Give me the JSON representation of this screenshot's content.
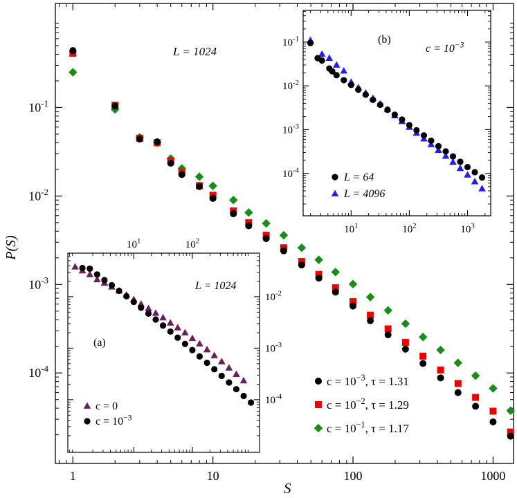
{
  "colors": {
    "black": "#000000",
    "red": "#ee0000",
    "green": "#1a8c1a",
    "blue": "#1f1fee",
    "purple": "#6b1f5a"
  },
  "chart_data": [
    {
      "id": "main",
      "type": "scatter",
      "xscale": "log",
      "yscale": "log",
      "xlim": [
        0.75,
        1400
      ],
      "ylim": [
        9.5e-06,
        1.5
      ],
      "xlabel": "S",
      "ylabel": "P(S)",
      "xticks": [
        {
          "v": 1,
          "label": "1"
        },
        {
          "v": 10,
          "label": "10"
        },
        {
          "v": 100,
          "label": "100"
        },
        {
          "v": 1000,
          "label": "1000"
        }
      ],
      "yticks": [
        {
          "v": 0.1,
          "b": "10",
          "e": "-1"
        },
        {
          "v": 0.01,
          "b": "10",
          "e": "-2"
        },
        {
          "v": 0.001,
          "b": "10",
          "e": "-3"
        },
        {
          "v": 0.0001,
          "b": "10",
          "e": "-4"
        }
      ],
      "annotation": {
        "main": "L = 1024"
      },
      "legend_position": "bottom-right",
      "series": [
        {
          "name": "c = 10^-3, τ = 1.31",
          "label_pre": "c = 10",
          "label_exp": "−3",
          "label_post": ", τ = 1.31",
          "marker": "circle",
          "color": "#000000",
          "x": [
            1,
            2,
            3,
            4,
            5,
            6,
            8,
            10,
            14,
            18,
            24,
            32,
            43,
            57,
            75,
            100,
            133,
            178,
            237,
            316,
            422,
            562,
            750,
            1000,
            1333
          ],
          "y": [
            0.44,
            0.104,
            0.044,
            0.041,
            0.0235,
            0.0175,
            0.0128,
            0.0094,
            0.0063,
            0.0046,
            0.0033,
            0.0024,
            0.00166,
            0.00118,
            0.00082,
            0.00057,
            0.00039,
            0.00027,
            0.000186,
            0.000128,
            8.8e-05,
            6e-05,
            4.2e-05,
            2.8e-05,
            1.93e-05
          ]
        },
        {
          "name": "c = 10^-2, τ = 1.29",
          "label_pre": "c = 10",
          "label_exp": "−2",
          "label_post": ", τ = 1.29",
          "marker": "square",
          "color": "#ee0000",
          "x": [
            1,
            2,
            3,
            4,
            5,
            6,
            8,
            10,
            14,
            18,
            24,
            32,
            43,
            57,
            75,
            100,
            133,
            178,
            237,
            316,
            422,
            562,
            750,
            1000,
            1333
          ],
          "y": [
            0.41,
            0.106,
            0.045,
            0.04,
            0.025,
            0.0185,
            0.0131,
            0.0102,
            0.0068,
            0.005,
            0.0036,
            0.0026,
            0.00182,
            0.0013,
            0.00092,
            0.00064,
            0.00045,
            0.000315,
            0.000222,
            0.000155,
            0.000108,
            7.6e-05,
            5.3e-05,
            3.7e-05,
            2.15e-05
          ]
        },
        {
          "name": "c = 10^-1, τ = 1.17",
          "label_pre": "c = 10",
          "label_exp": "−1",
          "label_post": ", τ = 1.17",
          "marker": "diamond",
          "color": "#1a8c1a",
          "x": [
            1,
            2,
            3,
            4,
            5,
            6,
            8,
            10,
            14,
            18,
            24,
            32,
            43,
            57,
            75,
            100,
            133,
            178,
            237,
            316,
            422,
            562,
            750,
            1000,
            1333
          ],
          "y": [
            0.25,
            0.095,
            0.046,
            0.04,
            0.0265,
            0.0205,
            0.0165,
            0.013,
            0.009,
            0.0065,
            0.0049,
            0.0036,
            0.0026,
            0.0019,
            0.00138,
            0.00101,
            0.00072,
            0.00051,
            0.00036,
            0.000255,
            0.000182,
            0.00013,
            9.3e-05,
            6.7e-05,
            3.75e-05
          ]
        }
      ]
    },
    {
      "id": "inset_a",
      "type": "scatter",
      "xscale": "log",
      "yscale": "log",
      "xlim": [
        0.75,
        1400
      ],
      "ylim": [
        9.5e-06,
        0.07
      ],
      "panel_label": "(a)",
      "annotation": "L = 1024",
      "xticks": [
        {
          "v": 10,
          "b": "10",
          "e": "1"
        },
        {
          "v": 100,
          "b": "10",
          "e": "2"
        }
      ],
      "yticks": [
        {
          "v": 0.01,
          "b": "10",
          "e": "-2"
        },
        {
          "v": 0.001,
          "b": "10",
          "e": "-3"
        },
        {
          "v": 0.0001,
          "b": "10",
          "e": "-4"
        }
      ],
      "series": [
        {
          "name": "c = 0",
          "label_pre": "c = 0",
          "label_exp": "",
          "marker": "triangle",
          "color": "#6b1f5a",
          "x": [
            1,
            1.33,
            1.78,
            2.37,
            3.16,
            4.22,
            5.62,
            7.5,
            10,
            13.3,
            17.8,
            23.7,
            31.6,
            42.2,
            56.2,
            75,
            100,
            133,
            178,
            237,
            316,
            422,
            562,
            750
          ],
          "y": [
            0.038,
            0.032,
            0.027,
            0.0215,
            0.0185,
            0.0155,
            0.013,
            0.0108,
            0.0088,
            0.0072,
            0.0059,
            0.0048,
            0.0039,
            0.0031,
            0.0025,
            0.002,
            0.00155,
            0.00122,
            0.00094,
            0.00072,
            0.00055,
            0.000415,
            0.000312,
            0.000234
          ]
        },
        {
          "name": "c = 10^-3",
          "label_pre": "c = 10",
          "label_exp": "−3",
          "marker": "circle",
          "color": "#000000",
          "x": [
            1.33,
            1.78,
            2.37,
            3.16,
            4.22,
            5.62,
            7.5,
            10,
            13.3,
            17.8,
            23.7,
            31.6,
            42.2,
            56.2,
            75,
            100,
            133,
            178,
            237,
            316,
            422,
            562,
            750,
            1000
          ],
          "y": [
            0.036,
            0.035,
            0.027,
            0.021,
            0.0167,
            0.013,
            0.0102,
            0.0079,
            0.0061,
            0.0047,
            0.0036,
            0.00275,
            0.0021,
            0.0016,
            0.00121,
            0.00092,
            0.00069,
            0.00052,
            0.00039,
            0.00029,
            0.000216,
            0.00016,
            0.000118,
            8.8e-05
          ]
        }
      ]
    },
    {
      "id": "inset_b",
      "type": "scatter",
      "xscale": "log",
      "yscale": "log",
      "xlim": [
        1.5,
        2500
      ],
      "ylim": [
        1.08e-05,
        0.53
      ],
      "panel_label": "(b)",
      "annotation_pre": "c = 10",
      "annotation_exp": "−3",
      "xticks": [
        {
          "v": 10,
          "b": "10",
          "e": "1"
        },
        {
          "v": 100,
          "b": "10",
          "e": "2"
        },
        {
          "v": 1000,
          "b": "10",
          "e": "3"
        }
      ],
      "yticks": [
        {
          "v": 0.1,
          "b": "10",
          "e": "-1"
        },
        {
          "v": 0.01,
          "b": "10",
          "e": "-2"
        },
        {
          "v": 0.001,
          "b": "10",
          "e": "-3"
        },
        {
          "v": 0.0001,
          "b": "10",
          "e": "-4"
        }
      ],
      "series": [
        {
          "name": "L = 64",
          "label_pre": "L = 64",
          "label_exp": "",
          "marker": "circle",
          "color": "#000000",
          "x": [
            2,
            2.66,
            3.16,
            4.22,
            4.74,
            5.62,
            7.5,
            10,
            13.3,
            17.8,
            23.7,
            31.6,
            42.2,
            56.2,
            75,
            100,
            133,
            178,
            237,
            316,
            422,
            562,
            750,
            1000,
            1333,
            1778
          ],
          "y": [
            0.095,
            0.043,
            0.038,
            0.025,
            0.0215,
            0.0175,
            0.0135,
            0.0105,
            0.0082,
            0.0063,
            0.0048,
            0.0037,
            0.00285,
            0.0022,
            0.0017,
            0.00127,
            0.00097,
            0.00074,
            0.00056,
            0.00042,
            0.00032,
            0.000245,
            0.000185,
            0.00014,
            0.000107,
            8.1e-05
          ]
        },
        {
          "name": "L = 4096",
          "label_pre": "L = 4096",
          "label_exp": "",
          "marker": "triangle",
          "color": "#1f1fee",
          "x": [
            2,
            3.16,
            4.22,
            5.62,
            7.5,
            10,
            13.3,
            17.8,
            23.7,
            31.6,
            42.2,
            56.2,
            75,
            100,
            133,
            178,
            237,
            316,
            422,
            562,
            750,
            1000,
            1333,
            1778
          ],
          "y": [
            0.11,
            0.053,
            0.043,
            0.03,
            0.022,
            0.0122,
            0.0092,
            0.0069,
            0.0052,
            0.0039,
            0.0029,
            0.0021,
            0.00155,
            0.00114,
            0.00084,
            0.00062,
            0.00046,
            0.00034,
            0.00025,
            0.000182,
            0.000131,
            9.3e-05,
            6.5e-05,
            4.5e-05
          ]
        }
      ]
    }
  ]
}
